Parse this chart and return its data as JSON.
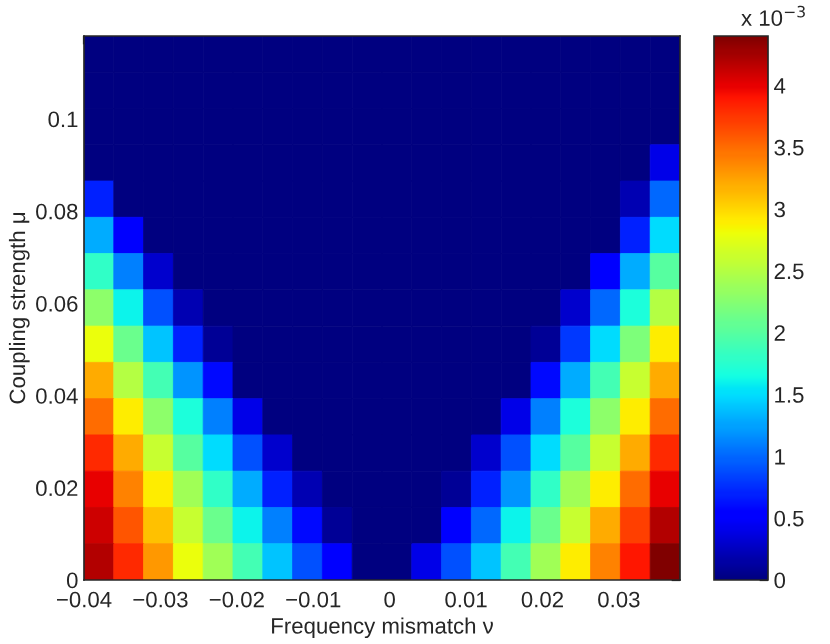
{
  "chart_data": {
    "type": "heatmap",
    "xlabel": "Frequency mismatch ν",
    "ylabel": "Coupling strength μ",
    "clabel": "x 10$^{−3}$",
    "xlim": [
      -0.04,
      0.038
    ],
    "ylim": [
      0,
      0.118
    ],
    "xticks": [
      {
        "value": -0.04,
        "label": "−0.04"
      },
      {
        "value": -0.03,
        "label": "−0.03"
      },
      {
        "value": -0.02,
        "label": "−0.02"
      },
      {
        "value": -0.01,
        "label": "−0.01"
      },
      0,
      0.01,
      0.02,
      0.03
    ],
    "yticks": [
      0,
      0.02,
      0.04,
      0.06,
      0.08,
      0.1
    ],
    "clim": [
      0,
      4.4
    ],
    "cticks": [
      0,
      0.5,
      1,
      1.5,
      2,
      2.5,
      3,
      3.5,
      4
    ],
    "cells": [
      [
        0,
        0,
        0,
        0,
        0,
        0,
        0,
        0,
        0,
        0,
        0,
        0,
        0,
        0,
        0,
        0,
        0,
        0,
        0,
        0
      ],
      [
        0,
        0,
        0,
        0,
        0,
        0,
        0,
        0,
        0,
        0,
        0,
        0,
        0,
        0,
        0,
        0,
        0,
        0,
        0,
        0
      ],
      [
        0,
        0,
        0,
        0,
        0,
        0,
        0,
        0,
        0,
        0,
        0,
        0,
        0,
        0,
        0,
        0,
        0,
        0,
        0,
        0
      ],
      [
        0,
        0,
        0,
        0,
        0,
        0,
        0,
        0,
        0,
        0,
        0,
        0,
        0,
        0,
        0,
        0,
        0,
        0,
        0,
        0.4
      ],
      [
        0.7,
        0,
        0,
        0,
        0,
        0,
        0,
        0,
        0,
        0,
        0,
        0,
        0,
        0,
        0,
        0,
        0,
        0,
        0.2,
        1.0
      ],
      [
        1.3,
        0.5,
        0,
        0,
        0,
        0,
        0,
        0,
        0,
        0,
        0,
        0,
        0,
        0,
        0,
        0,
        0,
        0,
        0.7,
        1.5
      ],
      [
        1.8,
        1.1,
        0.3,
        0,
        0,
        0,
        0,
        0,
        0,
        0,
        0,
        0,
        0,
        0,
        0,
        0,
        0,
        0.5,
        1.3,
        2.0
      ],
      [
        2.3,
        1.6,
        0.9,
        0.2,
        0,
        0,
        0,
        0,
        0,
        0,
        0,
        0,
        0,
        0,
        0,
        0,
        0.3,
        1.0,
        1.7,
        2.5
      ],
      [
        2.8,
        2.1,
        1.4,
        0.7,
        0.1,
        0,
        0,
        0,
        0,
        0,
        0,
        0,
        0,
        0,
        0,
        0.1,
        0.8,
        1.5,
        2.2,
        2.9
      ],
      [
        3.2,
        2.5,
        1.9,
        1.2,
        0.6,
        0,
        0,
        0,
        0,
        0,
        0,
        0,
        0,
        0,
        0,
        0.6,
        1.3,
        1.9,
        2.6,
        3.2
      ],
      [
        3.5,
        2.9,
        2.3,
        1.7,
        1.1,
        0.4,
        0,
        0,
        0,
        0,
        0,
        0,
        0,
        0,
        0.4,
        1.1,
        1.7,
        2.3,
        2.9,
        3.5
      ],
      [
        3.8,
        3.2,
        2.6,
        2.0,
        1.5,
        0.9,
        0.3,
        0,
        0,
        0,
        0,
        0,
        0,
        0.3,
        0.9,
        1.5,
        2.0,
        2.6,
        3.2,
        3.8
      ],
      [
        4.0,
        3.4,
        2.9,
        2.4,
        1.8,
        1.3,
        0.7,
        0.2,
        0,
        0,
        0,
        0,
        0.1,
        0.7,
        1.2,
        1.8,
        2.4,
        2.9,
        3.5,
        4.0
      ],
      [
        4.1,
        3.6,
        3.1,
        2.6,
        2.1,
        1.6,
        1.1,
        0.6,
        0.1,
        0,
        0,
        0,
        0.5,
        1.0,
        1.6,
        2.1,
        2.6,
        3.2,
        3.7,
        4.2
      ],
      [
        4.2,
        3.8,
        3.3,
        2.8,
        2.4,
        1.9,
        1.4,
        0.9,
        0.5,
        0,
        0,
        0.4,
        0.9,
        1.4,
        1.9,
        2.4,
        2.9,
        3.4,
        3.9,
        4.4
      ]
    ]
  }
}
